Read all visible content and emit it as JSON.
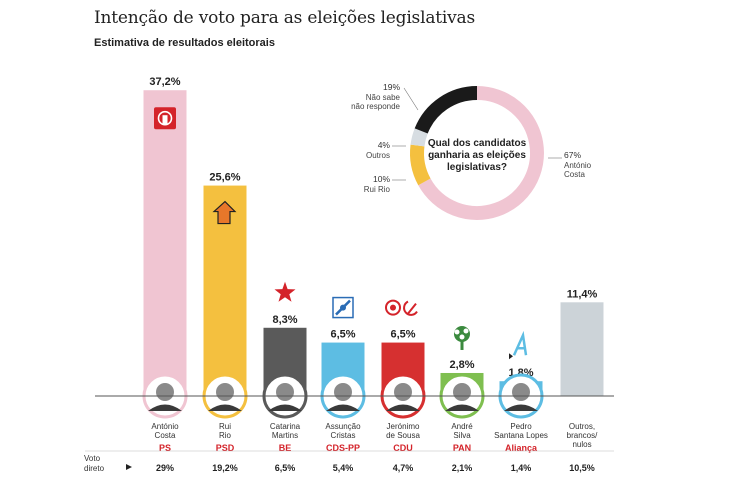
{
  "title": "Intenção de voto para as eleições legislativas",
  "subtitle": "Estimativa de resultados eleitorais",
  "direct_vote_label": [
    "Voto",
    "direto"
  ],
  "chart_data": [
    {
      "type": "bar",
      "categories": [
        "PS",
        "PSD",
        "BE",
        "CDS-PP",
        "CDU",
        "PAN",
        "Aliança",
        "Outros"
      ],
      "candidates": [
        [
          "António",
          "Costa"
        ],
        [
          "Rui",
          "Rio"
        ],
        [
          "Catarina",
          "Martins"
        ],
        [
          "Assunção",
          "Cristas"
        ],
        [
          "Jerónimo",
          "de Sousa"
        ],
        [
          "André",
          "Silva"
        ],
        [
          "Pedro",
          "Santana Lopes"
        ],
        [
          "Outros,",
          "brancos/",
          "nulos"
        ]
      ],
      "parties": [
        "PS",
        "PSD",
        "BE",
        "CDS-PP",
        "CDU",
        "PAN",
        "Aliança",
        ""
      ],
      "values": [
        37.2,
        25.6,
        8.3,
        6.5,
        6.5,
        2.8,
        1.8,
        11.4
      ],
      "value_labels": [
        "37,2%",
        "25,6%",
        "8,3%",
        "6,5%",
        "6,5%",
        "2,8%",
        "1,8%",
        "11,4%"
      ],
      "direct_vote": [
        "29%",
        "19,2%",
        "6,5%",
        "5,4%",
        "4,7%",
        "2,1%",
        "1,4%",
        "10,5%"
      ],
      "colors": [
        "#f0c5d2",
        "#f4c03f",
        "#5a5a5a",
        "#5dbde3",
        "#d63030",
        "#7fbf50",
        "#5dbde3",
        "#ccd3d8"
      ],
      "party_label_color": "#d4232a",
      "party_icons": [
        "fist-rose-icon",
        "arrow-icon",
        "star-icon",
        "diamond-icon",
        "hammer-sickle-icon",
        "tree-icon",
        "a-letter-icon",
        ""
      ]
    },
    {
      "type": "pie",
      "question": [
        "Qual dos candidatos",
        "ganharia as eleições",
        "legislativas?"
      ],
      "slices": [
        {
          "label": [
            "António",
            "Costa"
          ],
          "value": 67,
          "pct": "67%",
          "color": "#f0c5d2"
        },
        {
          "label": [
            "Rui Rio"
          ],
          "value": 10,
          "pct": "10%",
          "color": "#f4c03f"
        },
        {
          "label": [
            "Outros"
          ],
          "value": 4,
          "pct": "4%",
          "color": "#d7dde2"
        },
        {
          "label": [
            "Não sabe",
            "não responde"
          ],
          "value": 19,
          "pct": "19%",
          "color": "#1a1a1a"
        }
      ]
    }
  ]
}
